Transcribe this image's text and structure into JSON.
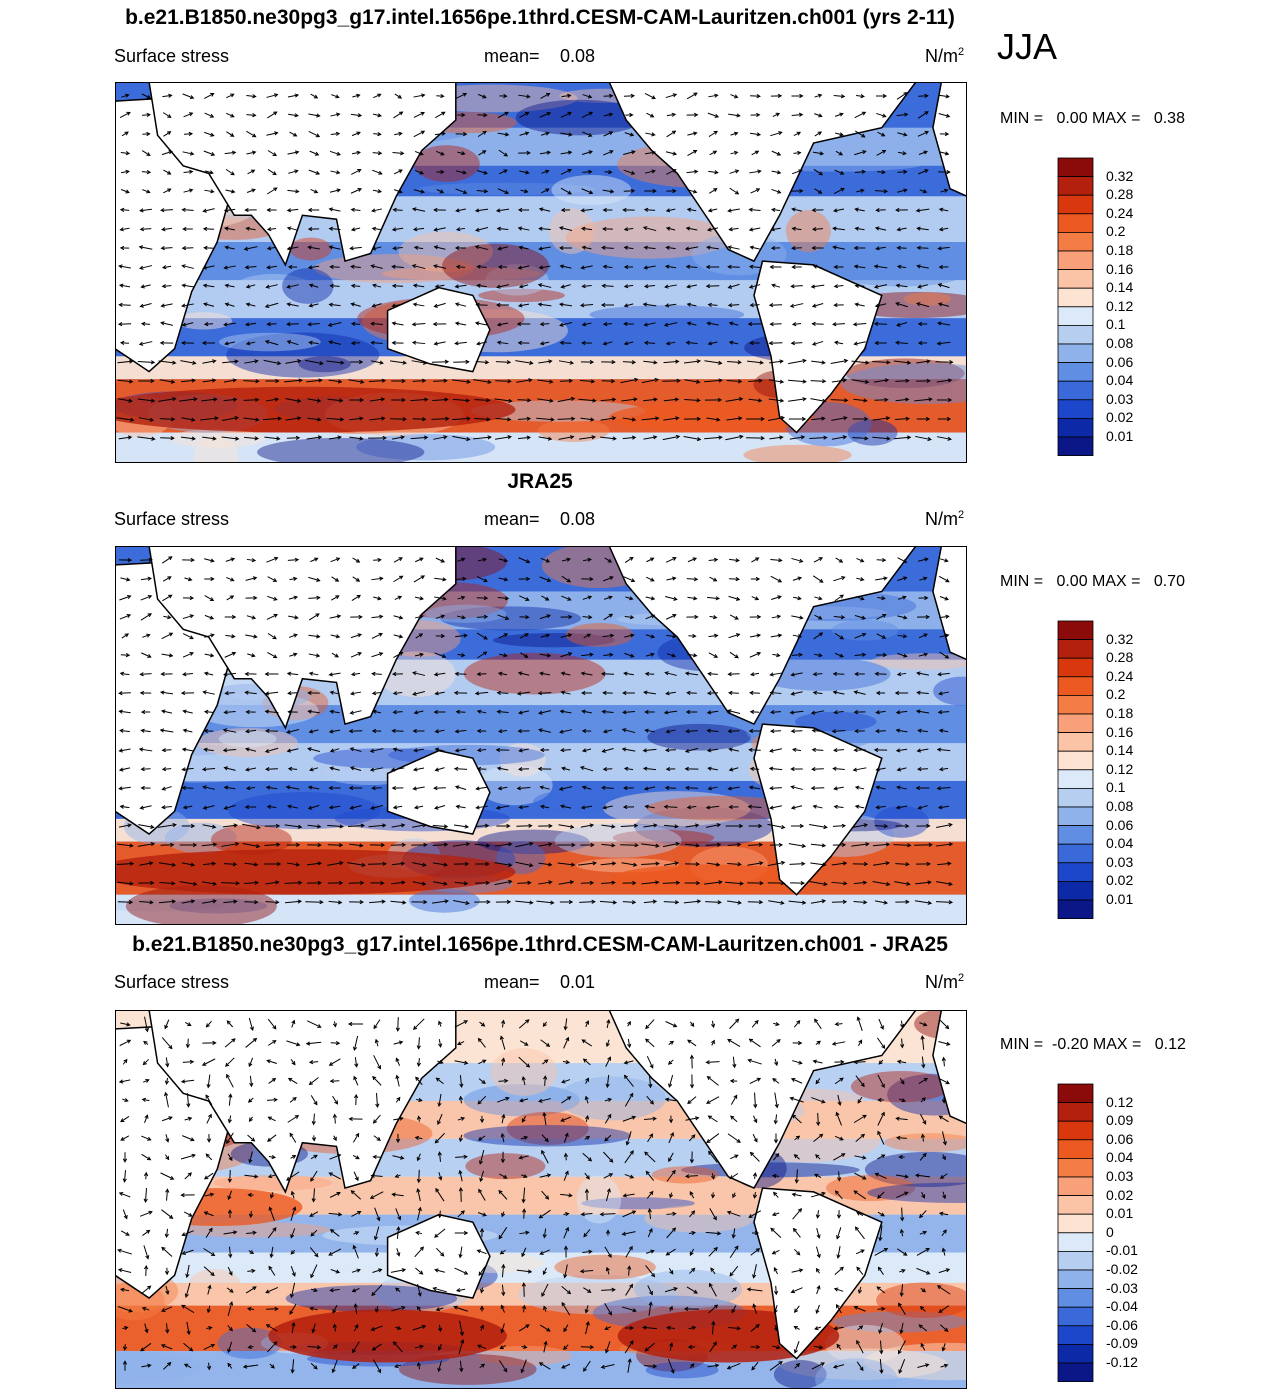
{
  "season": "JJA",
  "panels": [
    {
      "title": "b.e21.B1850.ne30pg3_g17.intel.1656pe.1thrd.CESM-CAM-Lauritzen.ch001 (yrs 2-11)",
      "field": "Surface stress",
      "mean_label": "mean=",
      "mean": "0.08",
      "units": "N/m",
      "units_exp": "2",
      "minmax": "MIN =   0.00 MAX =   0.38",
      "colorbar_labels": [
        "0.32",
        "0.28",
        "0.24",
        "0.2",
        "0.18",
        "0.16",
        "0.14",
        "0.12",
        "0.1",
        "0.08",
        "0.06",
        "0.04",
        "0.03",
        "0.02",
        "0.01"
      ]
    },
    {
      "title": "JRA25",
      "field": "Surface stress",
      "mean_label": "mean=",
      "mean": "0.08",
      "units": "N/m",
      "units_exp": "2",
      "minmax": "MIN =   0.00 MAX =   0.70",
      "colorbar_labels": [
        "0.32",
        "0.28",
        "0.24",
        "0.2",
        "0.18",
        "0.16",
        "0.14",
        "0.12",
        "0.1",
        "0.08",
        "0.06",
        "0.04",
        "0.03",
        "0.02",
        "0.01"
      ]
    },
    {
      "title": "b.e21.B1850.ne30pg3_g17.intel.1656pe.1thrd.CESM-CAM-Lauritzen.ch001 - JRA25",
      "field": "Surface stress",
      "mean_label": "mean=",
      "mean": "0.01",
      "units": "N/m",
      "units_exp": "2",
      "minmax": "MIN =  -0.20 MAX =   0.12",
      "colorbar_labels": [
        "0.12",
        "0.09",
        "0.06",
        "0.04",
        "0.03",
        "0.02",
        "0.01",
        "0",
        "-0.01",
        "-0.02",
        "-0.03",
        "-0.04",
        "-0.06",
        "-0.09",
        "-0.12"
      ]
    }
  ],
  "colors": {
    "colorbar_scale": [
      "#8b0a0a",
      "#b3200e",
      "#d9380f",
      "#ec5a22",
      "#f47d45",
      "#f8a07a",
      "#fbc4a6",
      "#fde4d2",
      "#dbe9f8",
      "#b6cff1",
      "#8fb2ea",
      "#5f8ee3",
      "#3a6ad9",
      "#1d47cb",
      "#0c2aa8",
      "#0b1787"
    ],
    "land": "#ffffff",
    "coast": "#000000",
    "arrow": "#000000"
  }
}
